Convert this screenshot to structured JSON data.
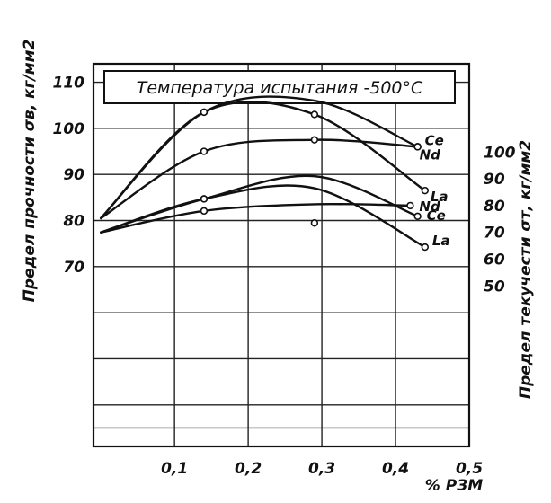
{
  "chart_data": {
    "type": "line",
    "title": "Температура испытания -500°С",
    "xlabel": "% РЗМ",
    "ylabel_left": "Предел прочности σв, кг/мм2",
    "ylabel_right": "Предел текучести σт, кг/мм2",
    "xlim": [
      -0.01,
      0.5
    ],
    "x_ticks": [
      "0,1",
      "0,2",
      "0,3",
      "0,4",
      "0,5"
    ],
    "x_tick_values": [
      0.1,
      0.2,
      0.3,
      0.4,
      0.5
    ],
    "left_ticks": [
      "110",
      "100",
      "90",
      "80",
      "70"
    ],
    "left_tick_values": [
      110,
      100,
      90,
      80,
      70
    ],
    "left_ylim": [
      31,
      114
    ],
    "right_ticks": [
      "100",
      "90",
      "80",
      "70",
      "60",
      "50"
    ],
    "right_tick_values": [
      100,
      90,
      80,
      70,
      60,
      50
    ],
    "right_ylim": [
      -10,
      133
    ],
    "grid": true,
    "series": [
      {
        "name": "Ce",
        "group": "strength",
        "axis": "left",
        "x": [
          0,
          0.14,
          0.29,
          0.43
        ],
        "y": [
          80.5,
          103.5,
          106,
          96
        ]
      },
      {
        "name": "Nd",
        "group": "strength",
        "axis": "left",
        "x": [
          0,
          0.14,
          0.29,
          0.43
        ],
        "y": [
          80.5,
          95,
          97.5,
          96
        ]
      },
      {
        "name": "La",
        "group": "strength",
        "axis": "left",
        "x": [
          0,
          0.14,
          0.29,
          0.44
        ],
        "y": [
          80.5,
          103.5,
          103,
          86.5
        ]
      },
      {
        "name": "Nd",
        "group": "yield",
        "axis": "right",
        "x": [
          0,
          0.14,
          0.29,
          0.42
        ],
        "y": [
          70,
          78,
          80.5,
          80
        ]
      },
      {
        "name": "Ce",
        "group": "yield",
        "axis": "right",
        "x": [
          0,
          0.14,
          0.29,
          0.43
        ],
        "y": [
          70,
          82.5,
          91,
          76
        ]
      },
      {
        "name": "La",
        "group": "yield",
        "axis": "right",
        "x": [
          0,
          0.14,
          0.29,
          0.44
        ],
        "y": [
          70,
          82.5,
          86.5,
          64.5
        ]
      }
    ],
    "isolated_points": [
      {
        "axis": "left",
        "x": 0.29,
        "y": 103
      },
      {
        "axis": "left",
        "x": 0.29,
        "y": 97.5
      },
      {
        "axis": "right",
        "x": 0.29,
        "y": 73.5
      }
    ]
  }
}
